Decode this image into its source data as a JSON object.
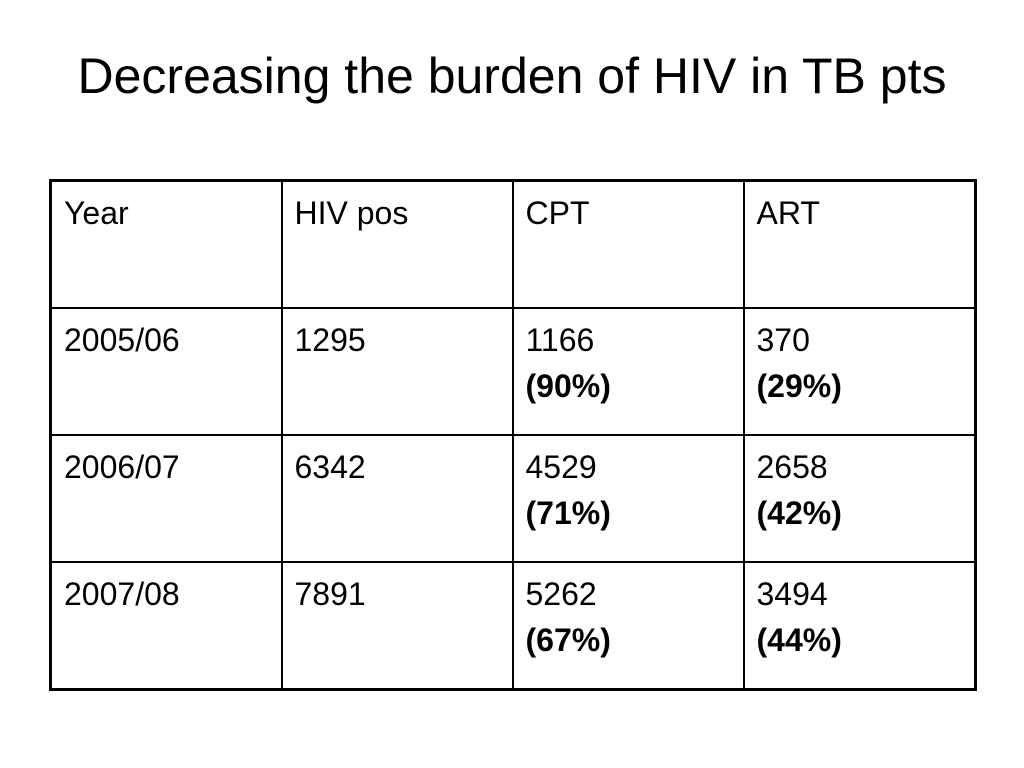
{
  "title": "Decreasing the burden of HIV in TB pts",
  "table": {
    "headers": [
      "Year",
      "HIV pos",
      "CPT",
      "ART"
    ],
    "rows": [
      {
        "year": "2005/06",
        "hiv_pos": "1295",
        "cpt": {
          "value": "1166",
          "percent": "(90%)"
        },
        "art": {
          "value": "370",
          "percent": "(29%)"
        }
      },
      {
        "year": "2006/07",
        "hiv_pos": "6342",
        "cpt": {
          "value": "4529",
          "percent": "(71%)"
        },
        "art": {
          "value": "2658",
          "percent": "(42%)"
        }
      },
      {
        "year": "2007/08",
        "hiv_pos": "7891",
        "cpt": {
          "value": "5262",
          "percent": "(67%)"
        },
        "art": {
          "value": "3494",
          "percent": "(44%)"
        }
      }
    ]
  }
}
